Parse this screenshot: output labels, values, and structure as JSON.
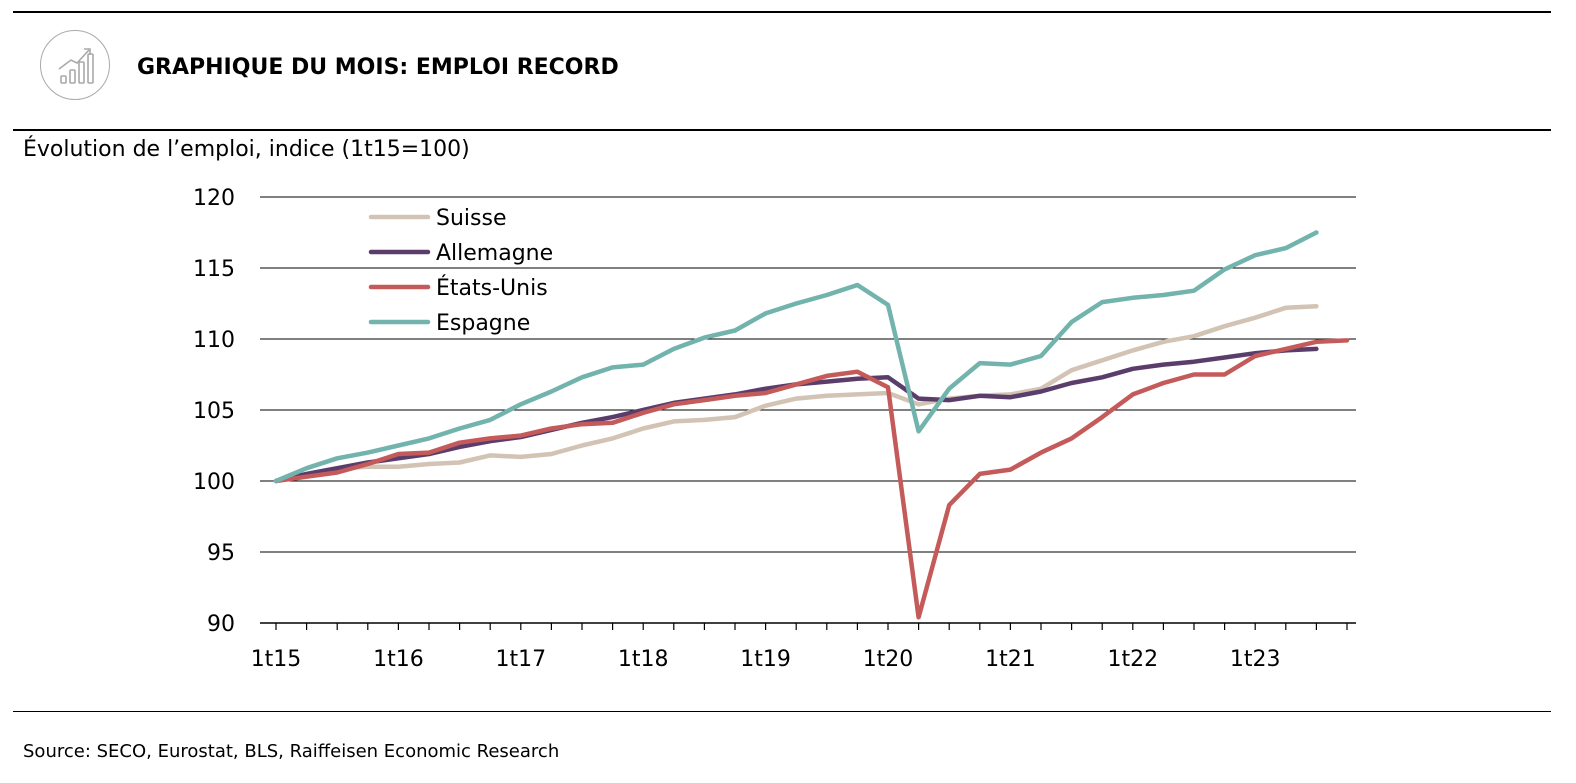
{
  "header": {
    "title": "GRAPHIQUE DU MOIS: EMPLOI RECORD",
    "icon": "bar-chart-trend-icon"
  },
  "chart_subtitle": "Évolution de l’emploi, indice (1t15=100)",
  "footer": {
    "source": "Source: SECO, Eurostat, BLS, Raiffeisen Economic Research"
  },
  "chart_data": {
    "type": "line",
    "ylabel": "Évolution de l’emploi, indice (1t15=100)",
    "ylim": [
      90,
      120
    ],
    "yticks": [
      90,
      95,
      100,
      105,
      110,
      115,
      120
    ],
    "x_tick_labels": [
      "1t15",
      "1t16",
      "1t17",
      "1t18",
      "1t19",
      "1t20",
      "1t21",
      "1t22",
      "1t23"
    ],
    "x_start_quarter": "1t15",
    "grid": "horizontal",
    "legend_position": "top-left",
    "series": [
      {
        "name": "Suisse",
        "color": "#d2c3b5",
        "values": [
          100,
          100.5,
          100.9,
          101.0,
          101.0,
          101.2,
          101.3,
          101.8,
          101.7,
          101.9,
          102.5,
          103.0,
          103.7,
          104.2,
          104.3,
          104.5,
          105.3,
          105.8,
          106.0,
          106.1,
          106.2,
          105.4,
          105.8,
          106.0,
          106.1,
          106.5,
          107.8,
          108.5,
          109.2,
          109.8,
          110.2,
          110.9,
          111.5,
          112.2,
          112.3
        ]
      },
      {
        "name": "Allemagne",
        "color": "#5a3d6b",
        "values": [
          100,
          100.5,
          100.9,
          101.3,
          101.6,
          101.9,
          102.4,
          102.8,
          103.1,
          103.6,
          104.1,
          104.5,
          105.0,
          105.5,
          105.8,
          106.1,
          106.5,
          106.8,
          107.0,
          107.2,
          107.3,
          105.8,
          105.7,
          106.0,
          105.9,
          106.3,
          106.9,
          107.3,
          107.9,
          108.2,
          108.4,
          108.7,
          109.0,
          109.2,
          109.3
        ]
      },
      {
        "name": "États-Unis",
        "color": "#c45a5a",
        "values": [
          100,
          100.3,
          100.6,
          101.2,
          101.9,
          102.0,
          102.7,
          103.0,
          103.2,
          103.7,
          104.0,
          104.1,
          104.8,
          105.4,
          105.7,
          106.0,
          106.2,
          106.8,
          107.4,
          107.7,
          106.6,
          90.4,
          98.3,
          100.5,
          100.8,
          102.0,
          103.0,
          104.5,
          106.1,
          106.9,
          107.5,
          107.5,
          108.8,
          109.3,
          109.8,
          109.9
        ]
      },
      {
        "name": "Espagne",
        "color": "#72b3ad",
        "values": [
          100,
          100.9,
          101.6,
          102.0,
          102.5,
          103.0,
          103.7,
          104.3,
          105.4,
          106.3,
          107.3,
          108.0,
          108.2,
          109.3,
          110.1,
          110.6,
          111.8,
          112.5,
          113.1,
          113.8,
          112.4,
          103.5,
          106.5,
          108.3,
          108.2,
          108.8,
          111.2,
          112.6,
          112.9,
          113.1,
          113.4,
          114.9,
          115.9,
          116.4,
          117.5
        ]
      }
    ]
  }
}
